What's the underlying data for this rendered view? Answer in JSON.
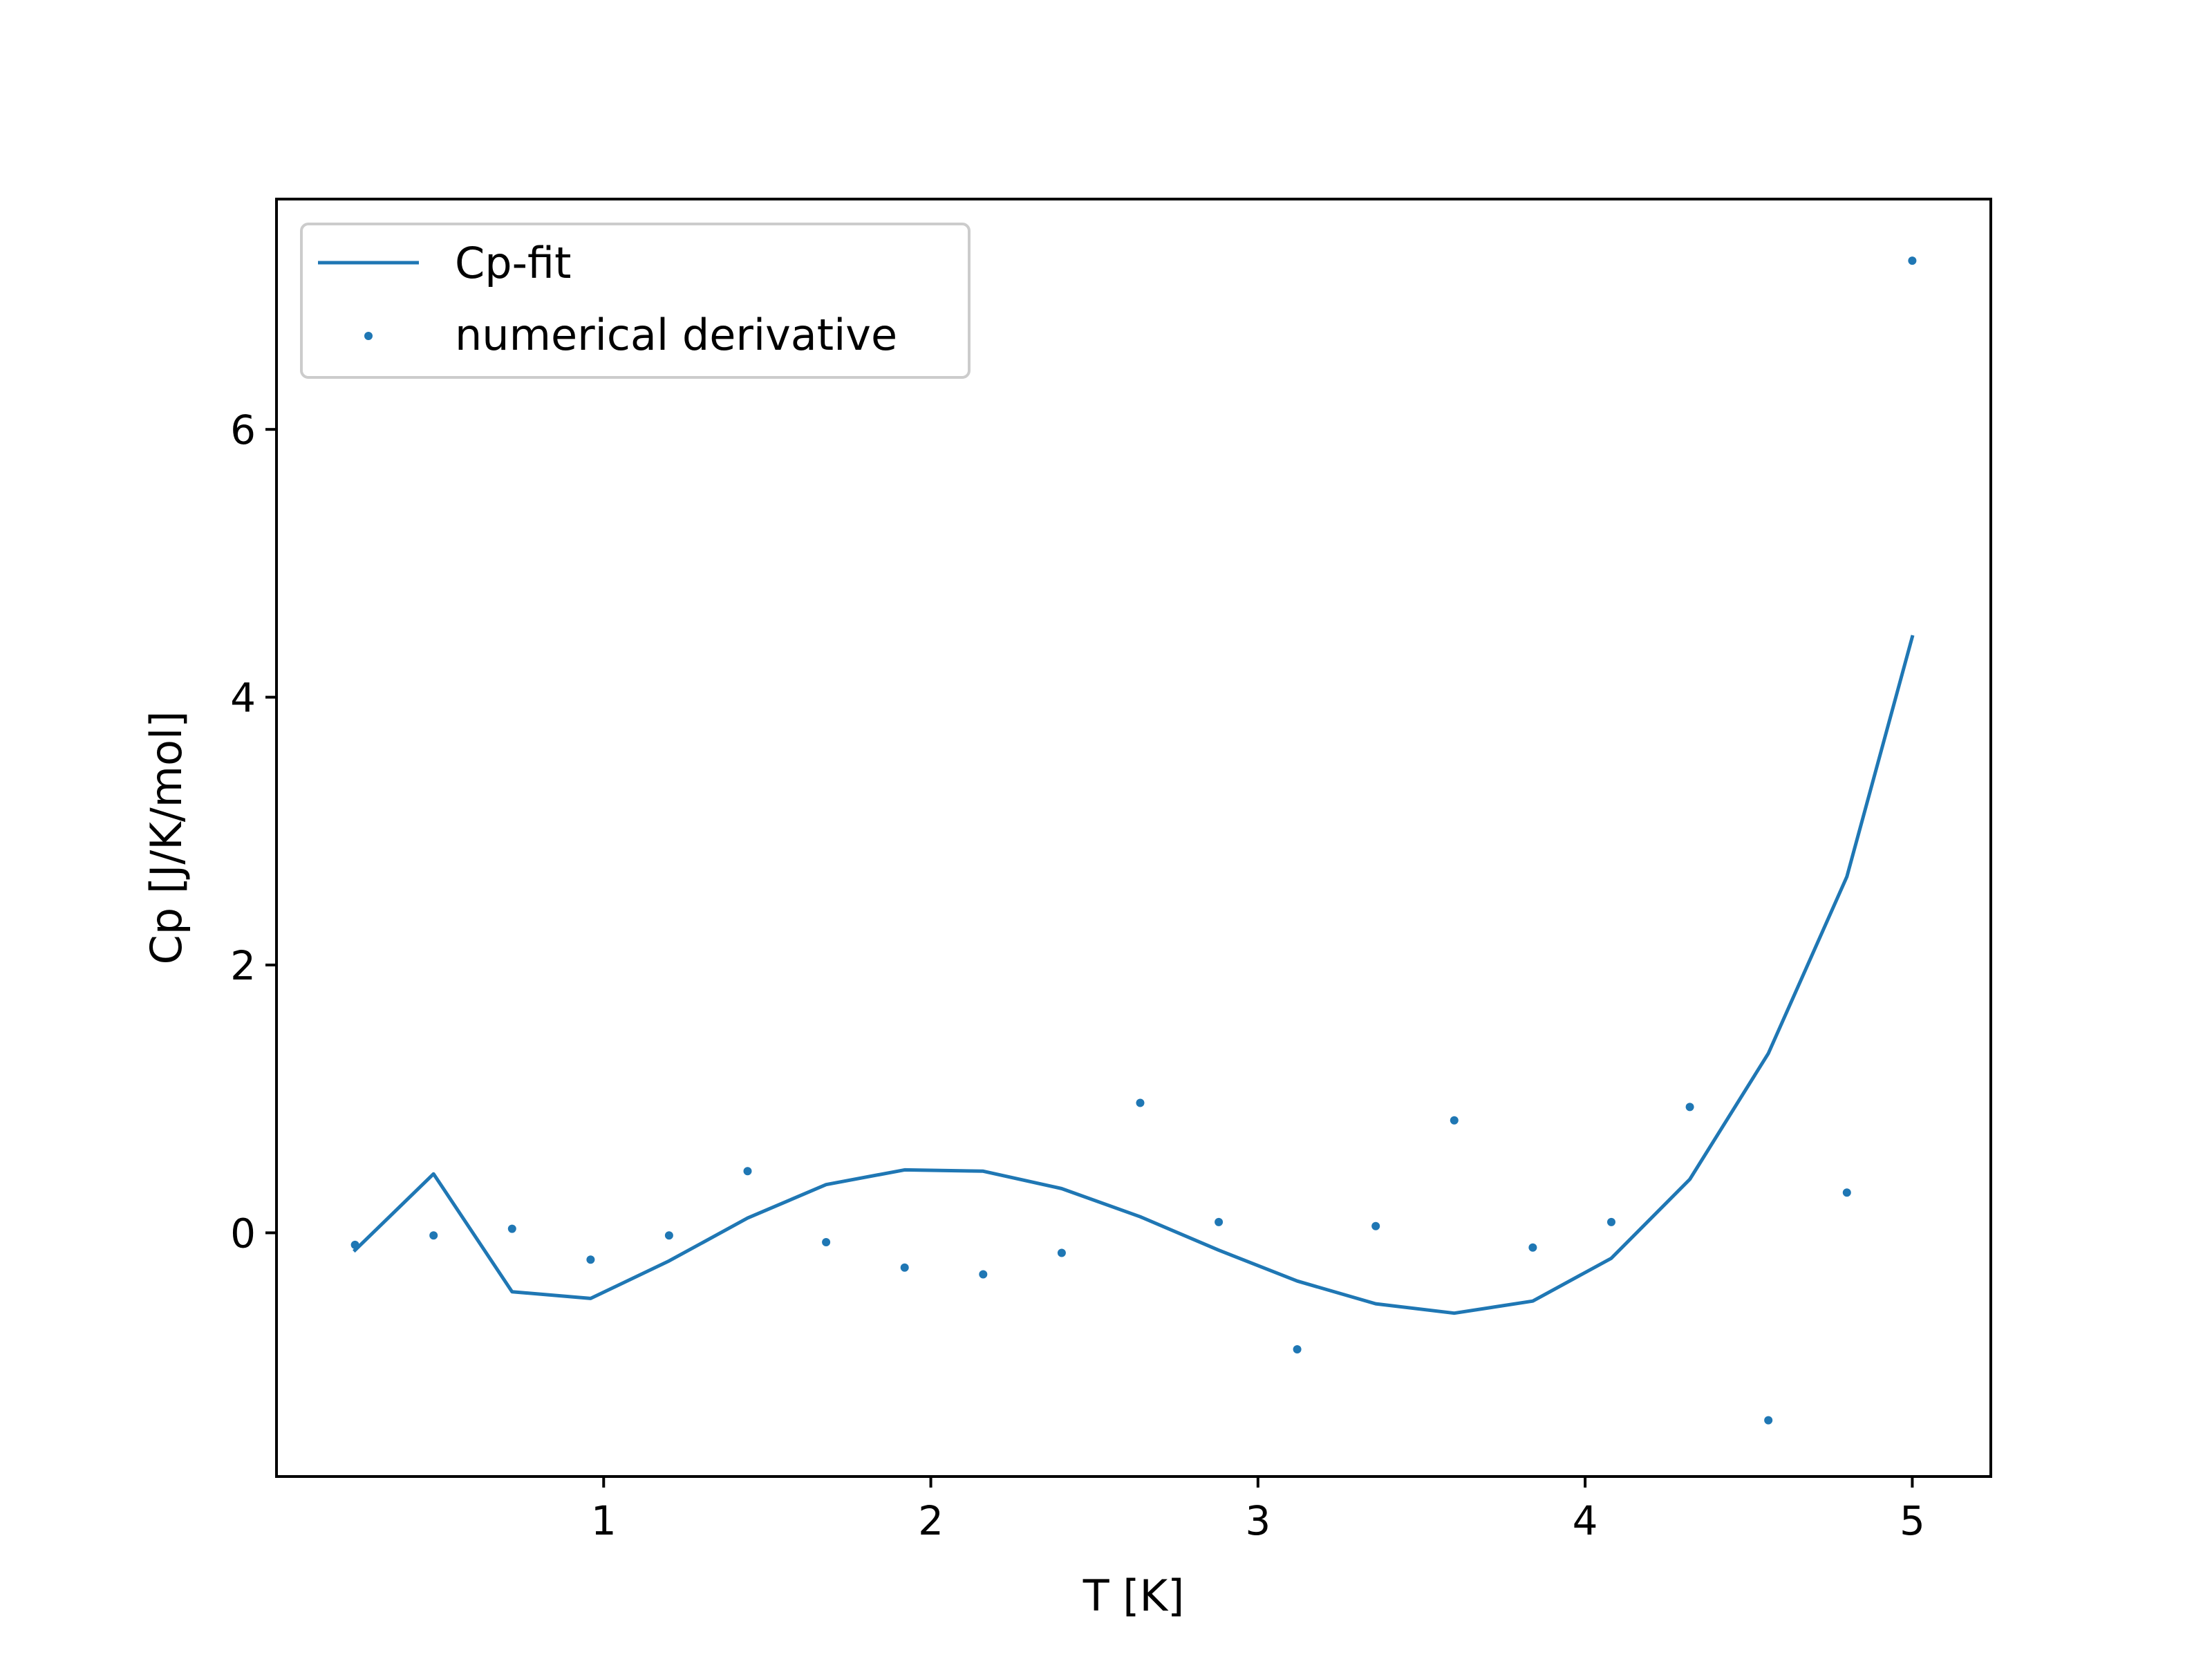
{
  "chart_data": {
    "type": "line",
    "xlabel": "T [K]",
    "ylabel": "Cp [J/K/mol]",
    "xlim": [
      0.0,
      5.24
    ],
    "ylim": [
      -1.82,
      7.72
    ],
    "x_ticks": [
      1,
      2,
      3,
      4,
      5
    ],
    "y_ticks": [
      0,
      2,
      4,
      6
    ],
    "grid": false,
    "legend_position": "upper left",
    "series_color": "#1f77b4",
    "series": [
      {
        "name": "Cp-fit",
        "style": "line",
        "x": [
          0.24,
          0.48,
          0.72,
          0.96,
          1.2,
          1.44,
          1.68,
          1.92,
          2.16,
          2.4,
          2.64,
          2.88,
          3.12,
          3.36,
          3.6,
          3.84,
          4.08,
          4.32,
          4.56,
          4.8,
          5.0
        ],
        "y": [
          -0.13,
          0.44,
          -0.44,
          -0.49,
          -0.21,
          0.11,
          0.36,
          0.47,
          0.46,
          0.33,
          0.12,
          -0.13,
          -0.36,
          -0.53,
          -0.6,
          -0.51,
          -0.19,
          0.4,
          1.34,
          2.66,
          4.45
        ]
      },
      {
        "name": "numerical derivative",
        "style": "scatter",
        "x": [
          0.24,
          0.48,
          0.72,
          0.96,
          1.2,
          1.44,
          1.68,
          1.92,
          2.16,
          2.4,
          2.64,
          2.88,
          3.12,
          3.36,
          3.6,
          3.84,
          4.08,
          4.32,
          4.56,
          4.8,
          5.0
        ],
        "y": [
          -0.09,
          -0.02,
          0.03,
          -0.2,
          -0.02,
          0.46,
          -0.07,
          -0.26,
          -0.31,
          -0.15,
          0.97,
          0.08,
          -0.87,
          0.05,
          0.84,
          -0.11,
          0.08,
          0.94,
          -1.4,
          0.3,
          7.26
        ]
      }
    ]
  }
}
